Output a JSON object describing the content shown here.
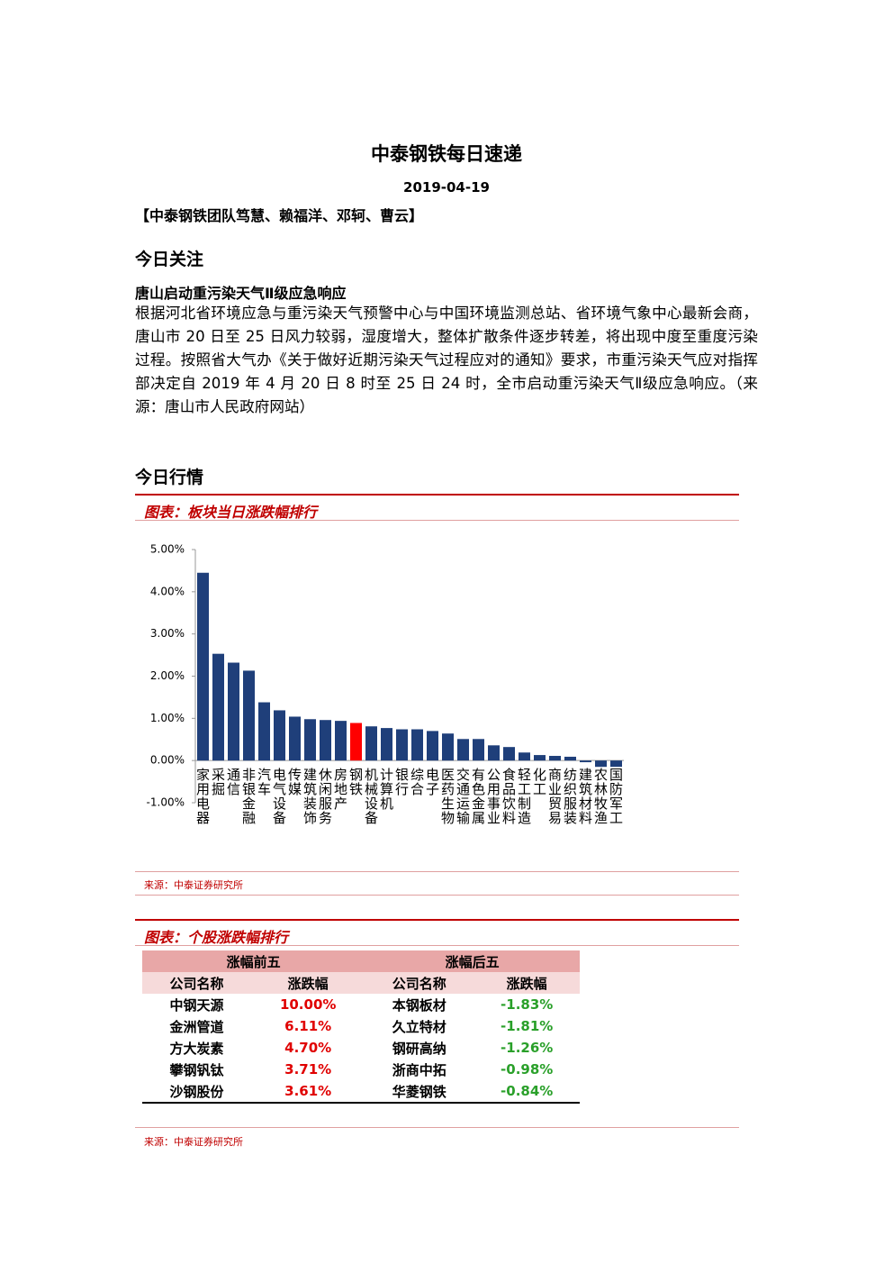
{
  "header": {
    "title": "中泰钢铁每日速递",
    "date": "2019-04-19",
    "team": "【中泰钢铁团队笃慧、赖福洋、邓轲、曹云】"
  },
  "focus": {
    "heading": "今日关注",
    "subheading": "唐山启动重污染天气Ⅱ级应急响应",
    "paragraph": "根据河北省环境应急与重污染天气预警中心与中国环境监测总站、省环境气象中心最新会商，唐山市 20 日至 25 日风力较弱，湿度增大，整体扩散条件逐步转差，将出现中度至重度污染过程。按照省大气办《关于做好近期污染天气过程应对的通知》要求，市重污染天气应对指挥部决定自 2019 年 4 月 20 日 8 时至 25 日 24 时，全市启动重污染天气Ⅱ级应急响应。（来源：唐山市人民政府网站）"
  },
  "market": {
    "heading": "今日行情"
  },
  "chart_data": {
    "type": "bar",
    "title": "图表：板块当日涨跌幅排行",
    "categories": [
      "家用电器",
      "采掘",
      "通信",
      "非银金融",
      "汽车",
      "电气设备",
      "传媒",
      "建筑装饰",
      "休闲服务",
      "房地产",
      "钢铁",
      "机械设备",
      "计算机",
      "银行",
      "综合",
      "电子",
      "医药生物",
      "交通运输",
      "有色金属",
      "公用事业",
      "食品饮料",
      "轻工制造",
      "化工",
      "商业贸易",
      "纺织服装",
      "建筑材料",
      "农林牧渔",
      "国防军工"
    ],
    "values": [
      4.45,
      2.53,
      2.32,
      2.13,
      1.38,
      1.19,
      1.04,
      0.98,
      0.96,
      0.94,
      0.89,
      0.81,
      0.77,
      0.74,
      0.74,
      0.7,
      0.64,
      0.51,
      0.51,
      0.36,
      0.32,
      0.19,
      0.13,
      0.11,
      0.09,
      -0.04,
      -0.15,
      -0.15
    ],
    "colors": [
      "#1f3f7a",
      "#1f3f7a",
      "#1f3f7a",
      "#1f3f7a",
      "#1f3f7a",
      "#1f3f7a",
      "#1f3f7a",
      "#1f3f7a",
      "#1f3f7a",
      "#1f3f7a",
      "#ff0000",
      "#1f3f7a",
      "#1f3f7a",
      "#1f3f7a",
      "#1f3f7a",
      "#1f3f7a",
      "#1f3f7a",
      "#1f3f7a",
      "#1f3f7a",
      "#1f3f7a",
      "#1f3f7a",
      "#1f3f7a",
      "#1f3f7a",
      "#1f3f7a",
      "#1f3f7a",
      "#1f3f7a",
      "#1f3f7a",
      "#1f3f7a"
    ],
    "ylim": [
      -1,
      5
    ],
    "yticks": [
      {
        "value": -1,
        "label": "-1.00%"
      },
      {
        "value": 0,
        "label": "0.00%"
      },
      {
        "value": 1,
        "label": "1.00%"
      },
      {
        "value": 2,
        "label": "2.00%"
      },
      {
        "value": 3,
        "label": "3.00%"
      },
      {
        "value": 4,
        "label": "4.00%"
      },
      {
        "value": 5,
        "label": "5.00%"
      }
    ],
    "source": "来源：中泰证券研究所"
  },
  "table": {
    "title": "图表：个股涨跌幅排行",
    "groups": [
      "涨幅前五",
      "涨幅后五"
    ],
    "columns": [
      "公司名称",
      "涨跌幅",
      "公司名称",
      "涨跌幅"
    ],
    "rows": [
      [
        "中钢天源",
        "10.00%",
        "本钢板材",
        "-1.83%"
      ],
      [
        "金洲管道",
        "6.11%",
        "久立特材",
        "-1.81%"
      ],
      [
        "方大炭素",
        "4.70%",
        "钢研高纳",
        "-1.26%"
      ],
      [
        "攀钢钒钛",
        "3.71%",
        "浙商中拓",
        "-0.98%"
      ],
      [
        "沙钢股份",
        "3.61%",
        "华菱钢铁",
        "-0.84%"
      ]
    ],
    "source": "来源：中泰证券研究所"
  }
}
